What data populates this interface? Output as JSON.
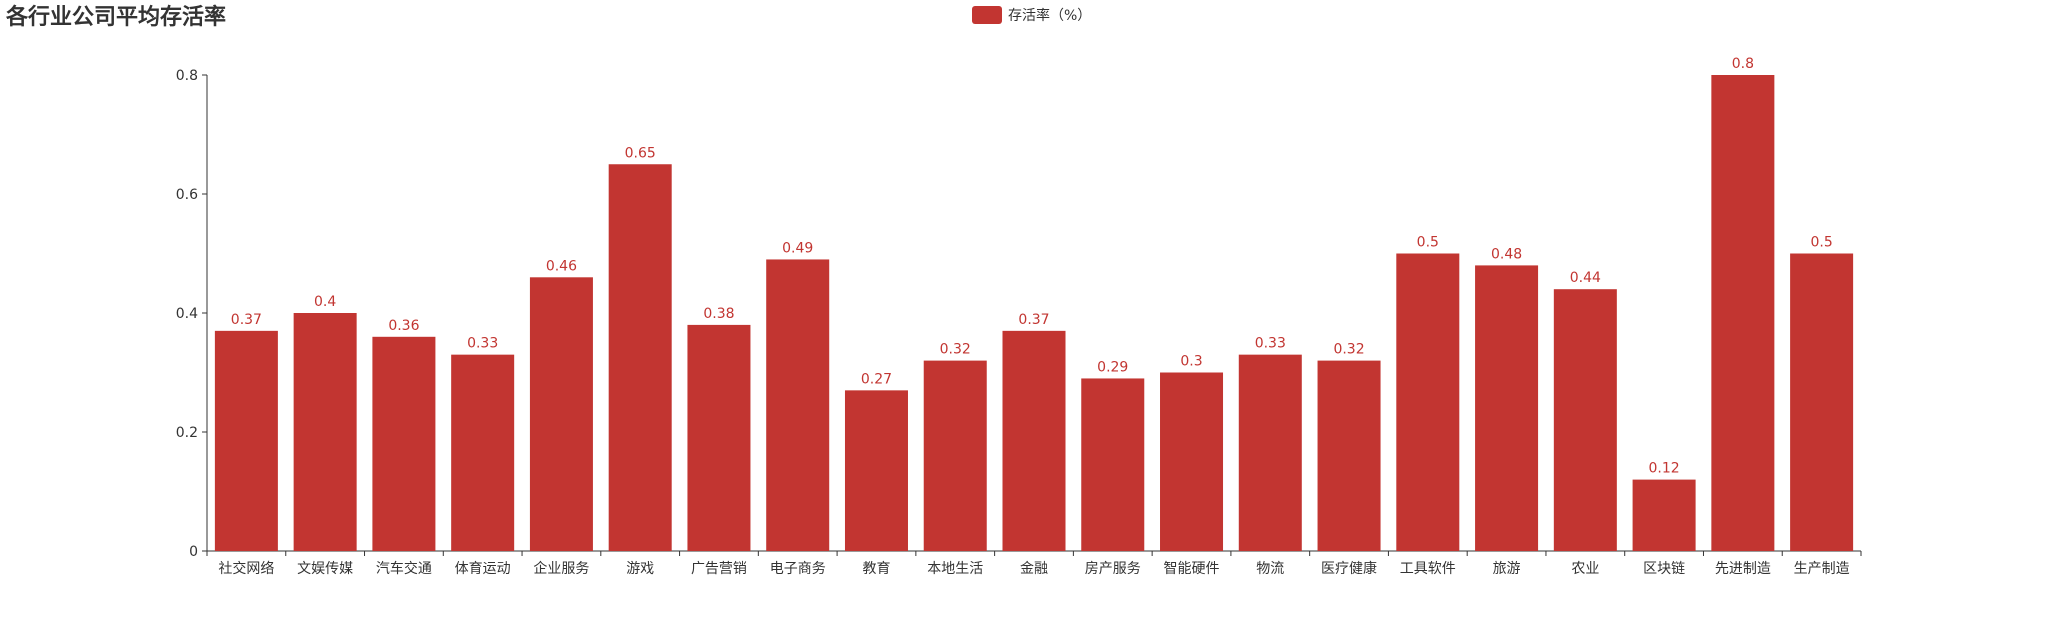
{
  "chart_data": {
    "type": "bar",
    "title": "各行业公司平均存活率",
    "legend": {
      "position": "top-center",
      "entries": [
        "存活率（%）"
      ]
    },
    "categories": [
      "社交网络",
      "文娱传媒",
      "汽车交通",
      "体育运动",
      "企业服务",
      "游戏",
      "广告营销",
      "电子商务",
      "教育",
      "本地生活",
      "金融",
      "房产服务",
      "智能硬件",
      "物流",
      "医疗健康",
      "工具软件",
      "旅游",
      "农业",
      "区块链",
      "先进制造",
      "生产制造"
    ],
    "series": [
      {
        "name": "存活率（%）",
        "color": "#c23531",
        "values": [
          0.37,
          0.4,
          0.36,
          0.33,
          0.46,
          0.65,
          0.38,
          0.49,
          0.27,
          0.32,
          0.37,
          0.29,
          0.3,
          0.33,
          0.32,
          0.5,
          0.48,
          0.44,
          0.12,
          0.8,
          0.5
        ]
      }
    ],
    "y_ticks": [
      "0",
      "0.2",
      "0.4",
      "0.6",
      "0.8"
    ],
    "ylim": [
      0,
      0.8
    ],
    "grid": false,
    "xlabel": "",
    "ylabel": ""
  }
}
